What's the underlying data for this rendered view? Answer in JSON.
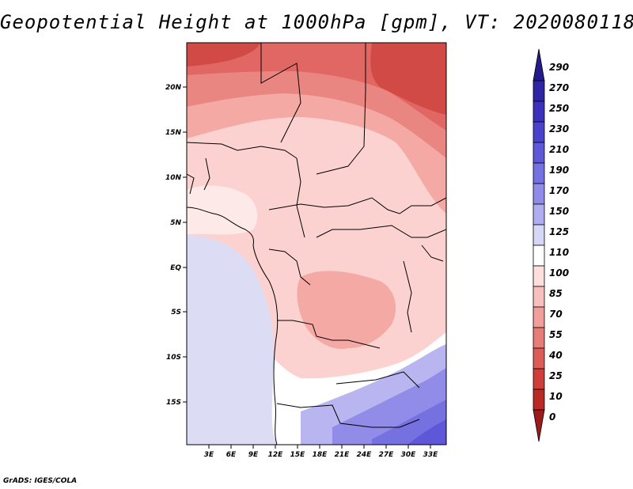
{
  "title": "Geopotential Height at 1000hPa [gpm], VT: 2020080118",
  "credit": "GrADS: IGES/COLA",
  "map": {
    "lat_labels": [
      "20N",
      "15N",
      "10N",
      "5N",
      "EQ",
      "5S",
      "10S",
      "15S"
    ],
    "lon_labels": [
      "3E",
      "6E",
      "9E",
      "12E",
      "15E",
      "18E",
      "21E",
      "24E",
      "27E",
      "30E",
      "33E"
    ]
  },
  "colorbar": {
    "levels": [
      "290",
      "270",
      "250",
      "230",
      "210",
      "190",
      "170",
      "150",
      "125",
      "110",
      "100",
      "85",
      "70",
      "55",
      "40",
      "25",
      "10",
      "0"
    ],
    "colors": [
      "#241a8c",
      "#2f25a4",
      "#3b31bd",
      "#4a42cc",
      "#5e57d8",
      "#7671e0",
      "#908ce8",
      "#b0adf0",
      "#d6d6f5",
      "#ffffff",
      "#fde0de",
      "#f8c0bd",
      "#f19f9b",
      "#e77d78",
      "#dc5d58",
      "#ce3e3a",
      "#b92a27",
      "#9e1b1b"
    ]
  }
}
